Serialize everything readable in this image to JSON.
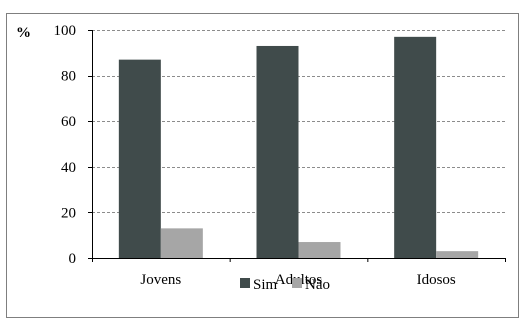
{
  "chart_data": {
    "type": "bar",
    "categories": [
      "Jovens",
      "Adultos",
      "Idosos"
    ],
    "series": [
      {
        "name": "Sim",
        "values": [
          87,
          93,
          97
        ],
        "color": "#404b4b"
      },
      {
        "name": "Não",
        "values": [
          13,
          7,
          3
        ],
        "color": "#a6a6a6"
      }
    ],
    "ylabel": "%",
    "ylim": [
      0,
      100
    ],
    "yticks": [
      0,
      20,
      40,
      60,
      80,
      100
    ],
    "grid": true,
    "legend": "bottom"
  }
}
